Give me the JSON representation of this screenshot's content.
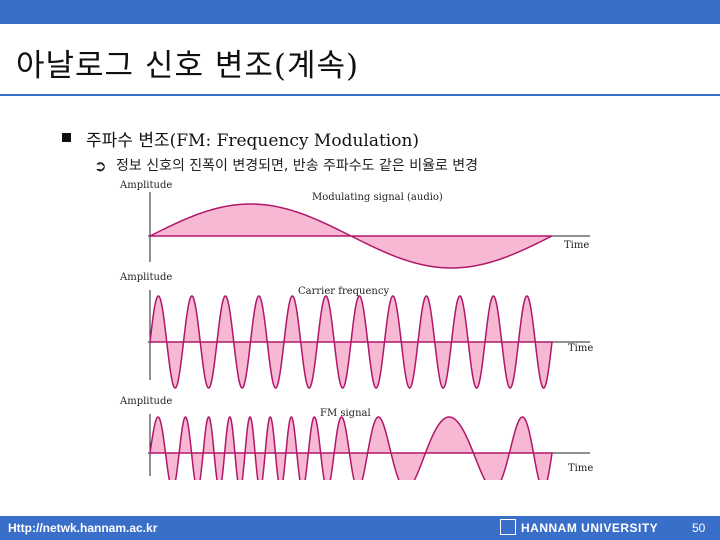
{
  "slide": {
    "title": "아날로그 신호 변조(계속)",
    "bullet1": "주파수 변조(FM: Frequency Modulation)",
    "bullet2": "정보 신호의 진폭이 변경되면, 반송 주파수도 같은 비율로 변경"
  },
  "figure": {
    "panels": [
      {
        "axis_label": "Amplitude",
        "title": "Modulating signal (audio)",
        "time_label": "Time"
      },
      {
        "axis_label": "Amplitude",
        "title": "Carrier frequency",
        "time_label": "Time"
      },
      {
        "axis_label": "Amplitude",
        "title": "FM signal",
        "time_label": "Time"
      }
    ],
    "fill_color": "#f6b8d2",
    "line_color": "#b0176a"
  },
  "footer": {
    "url": "Http://netwk.hannam.ac.kr",
    "university": "HANNAM UNIVERSITY",
    "page_number": "50"
  },
  "colors": {
    "accent": "#3a6fc9"
  }
}
